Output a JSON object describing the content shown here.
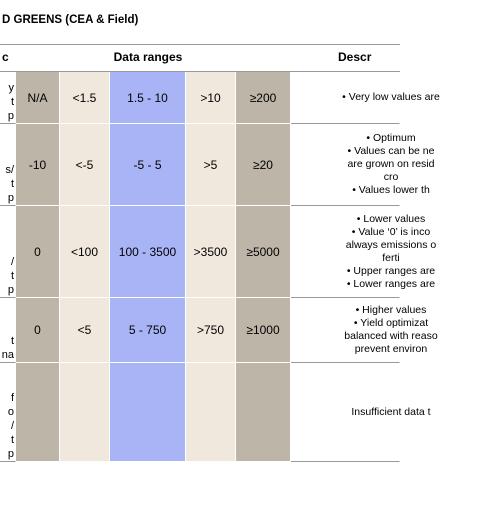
{
  "header": {
    "title": "D GREENS (CEA & Field)",
    "columns": [
      "c",
      "Data ranges",
      "Descr"
    ]
  },
  "rows": [
    {
      "label": [
        "y",
        "t",
        "p"
      ],
      "ranges": [
        "N/A",
        "<1.5",
        "1.5 - 10",
        ">10",
        "≥200"
      ],
      "description": [
        "• Very low values are"
      ]
    },
    {
      "label": [
        "s/",
        "t",
        "p"
      ],
      "ranges": [
        "-10",
        "<-5",
        "-5 - 5",
        ">5",
        "≥20"
      ],
      "description": [
        "• Optimum",
        "• Values can be ne",
        "are grown on resid",
        "cro",
        "• Values lower th"
      ]
    },
    {
      "label": [
        "/",
        "t",
        "p"
      ],
      "ranges": [
        "0",
        "<100",
        "100 - 3500",
        ">3500",
        "≥5000"
      ],
      "description": [
        "• Lower values",
        "• Value ‘0’ is inco",
        "always emissions o",
        "ferti",
        "• Upper ranges are",
        "• Lower ranges are"
      ]
    },
    {
      "label": [
        "t",
        "na"
      ],
      "ranges": [
        "0",
        "<5",
        "5 - 750",
        ">750",
        "≥1000"
      ],
      "description": [
        "• Higher values",
        "• Yield optimizat",
        "balanced with reaso",
        "prevent environ"
      ]
    },
    {
      "label": [
        "f",
        "o",
        "/",
        "t",
        "p"
      ],
      "ranges": [
        "",
        "",
        "",
        "",
        ""
      ],
      "description": [
        "Insufficient data t"
      ]
    }
  ]
}
